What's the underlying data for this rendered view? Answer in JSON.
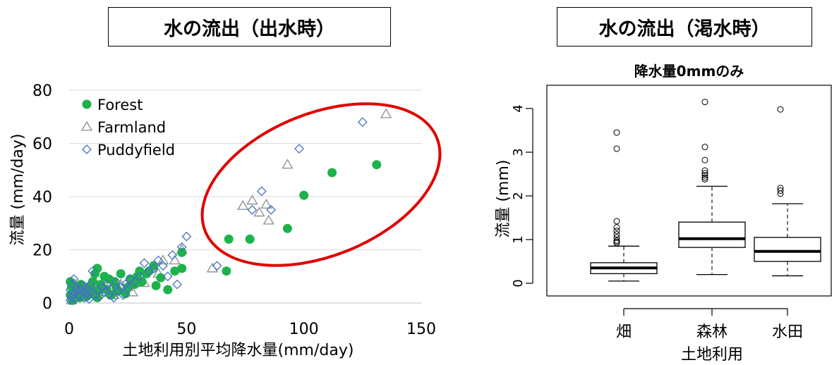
{
  "panels": {
    "left_title": "水の流出（出水時）",
    "right_title": "水の流出（渇水時）"
  },
  "chart_data": [
    {
      "type": "scatter",
      "title": "",
      "xlabel": "土地利用別平均降水量(mm/day)",
      "ylabel": "流量 (mm/day)",
      "xlim": [
        0,
        150
      ],
      "ylim": [
        0,
        80
      ],
      "xticks": [
        0,
        50,
        100,
        150
      ],
      "yticks": [
        0,
        20,
        40,
        60,
        80
      ],
      "grid": true,
      "legend_position": "top-left",
      "series": [
        {
          "name": "Forest",
          "marker": "filled-circle",
          "color": "#1db34a",
          "points": [
            [
              131,
              52
            ],
            [
              112,
              49
            ],
            [
              100,
              40.5
            ],
            [
              93,
              28
            ],
            [
              77,
              24
            ],
            [
              68,
              24
            ],
            [
              67,
              12
            ],
            [
              48,
              19
            ],
            [
              48,
              13
            ],
            [
              45,
              12
            ],
            [
              42,
              5
            ],
            [
              39,
              9.5
            ],
            [
              36,
              14
            ],
            [
              33,
              11
            ],
            [
              31,
              8
            ],
            [
              30,
              12
            ],
            [
              28,
              7
            ],
            [
              25,
              6
            ],
            [
              22,
              11
            ],
            [
              21,
              4.5
            ],
            [
              19,
              8
            ],
            [
              18,
              3
            ],
            [
              17,
              9
            ],
            [
              15,
              10
            ],
            [
              14,
              6
            ],
            [
              13,
              5
            ],
            [
              12,
              13
            ],
            [
              11,
              11
            ],
            [
              10,
              8
            ],
            [
              9,
              6
            ],
            [
              8,
              4
            ],
            [
              7,
              5
            ],
            [
              6,
              3
            ],
            [
              5,
              7
            ],
            [
              4,
              5
            ],
            [
              3,
              2
            ],
            [
              2,
              4
            ],
            [
              1,
              6
            ],
            [
              1,
              2
            ],
            [
              0.5,
              8
            ],
            [
              0.5,
              3
            ],
            [
              1.5,
              1
            ],
            [
              2.5,
              6
            ],
            [
              3.5,
              3.5
            ],
            [
              4.5,
              2
            ],
            [
              6,
              5.5
            ],
            [
              7.5,
              2.5
            ],
            [
              9,
              3.5
            ],
            [
              10.5,
              4.5
            ],
            [
              12,
              2
            ],
            [
              13.5,
              7
            ],
            [
              16,
              5
            ],
            [
              20,
              6
            ],
            [
              24,
              3.5
            ],
            [
              26,
              9
            ],
            [
              29,
              10
            ],
            [
              34,
              12
            ],
            [
              37,
              6.5
            ]
          ]
        },
        {
          "name": "Farmland",
          "marker": "open-triangle",
          "color": "#8c8c8c",
          "points": [
            [
              135,
              71
            ],
            [
              93,
              52
            ],
            [
              84,
              37
            ],
            [
              85,
              31
            ],
            [
              81,
              34
            ],
            [
              78,
              38.5
            ],
            [
              74,
              36.5
            ],
            [
              61,
              13
            ],
            [
              48,
              20
            ],
            [
              45,
              16
            ],
            [
              40,
              16
            ],
            [
              35,
              13
            ],
            [
              30,
              9
            ],
            [
              28,
              8
            ],
            [
              25,
              6
            ],
            [
              22,
              7
            ],
            [
              20,
              5
            ],
            [
              18,
              6
            ],
            [
              16,
              4
            ],
            [
              15,
              7
            ],
            [
              13,
              5
            ],
            [
              12,
              3
            ],
            [
              10,
              6
            ],
            [
              9,
              4
            ],
            [
              8,
              5
            ],
            [
              7,
              3
            ],
            [
              6,
              4
            ],
            [
              5,
              2
            ],
            [
              4,
              5
            ],
            [
              3,
              3
            ],
            [
              2,
              2
            ],
            [
              1,
              4
            ],
            [
              1,
              1
            ],
            [
              2.5,
              7
            ],
            [
              11,
              8
            ],
            [
              19,
              3
            ],
            [
              27,
              4
            ],
            [
              32,
              7.5
            ],
            [
              38,
              11
            ]
          ]
        },
        {
          "name": "Puddyfield",
          "marker": "open-diamond",
          "color": "#4472c4",
          "points": [
            [
              125,
              68
            ],
            [
              98,
              58
            ],
            [
              86,
              35
            ],
            [
              82,
              42
            ],
            [
              78,
              35
            ],
            [
              63,
              14
            ],
            [
              50,
              25
            ],
            [
              48,
              21
            ],
            [
              44,
              18
            ],
            [
              38,
              16
            ],
            [
              36,
              13
            ],
            [
              34,
              12
            ],
            [
              32,
              15
            ],
            [
              30,
              10
            ],
            [
              28,
              8
            ],
            [
              26,
              9
            ],
            [
              24,
              7
            ],
            [
              22,
              6
            ],
            [
              20,
              8
            ],
            [
              18,
              5
            ],
            [
              16,
              7
            ],
            [
              14,
              6
            ],
            [
              12,
              5
            ],
            [
              10,
              12
            ],
            [
              9,
              7
            ],
            [
              8,
              5
            ],
            [
              7,
              6
            ],
            [
              6,
              4
            ],
            [
              5,
              5
            ],
            [
              4,
              3
            ],
            [
              3,
              6
            ],
            [
              2,
              9
            ],
            [
              2,
              4
            ],
            [
              1,
              3
            ],
            [
              1,
              2
            ],
            [
              0.5,
              1
            ],
            [
              0.5,
              5
            ],
            [
              1.5,
              7
            ],
            [
              2.5,
              1.5
            ],
            [
              3.5,
              4.5
            ],
            [
              4.5,
              2.5
            ],
            [
              5.5,
              6.5
            ],
            [
              6.5,
              2
            ],
            [
              7.5,
              3.5
            ],
            [
              8.5,
              1.5
            ],
            [
              9.5,
              4
            ],
            [
              11,
              3
            ],
            [
              13,
              2.5
            ],
            [
              15,
              4
            ],
            [
              17,
              3
            ],
            [
              19,
              2
            ],
            [
              21,
              4.5
            ],
            [
              23,
              3
            ],
            [
              25,
              5.5
            ],
            [
              40,
              14
            ],
            [
              42,
              10
            ],
            [
              46,
              7
            ]
          ]
        }
      ],
      "annotation": {
        "shape": "ellipse",
        "color": "#e00000",
        "note": ""
      }
    },
    {
      "type": "boxplot",
      "title": "降水量0mmのみ",
      "xlabel": "土地利用",
      "ylabel": "流量 (mm)",
      "ylim": [
        0,
        4
      ],
      "yticks": [
        0,
        1,
        2,
        3,
        4
      ],
      "categories": [
        "畑",
        "森林",
        "水田"
      ],
      "boxes": [
        {
          "name": "畑",
          "whisker_low": 0.05,
          "q1": 0.22,
          "median": 0.35,
          "q3": 0.47,
          "whisker_high": 0.85,
          "outliers": [
            3.45,
            3.08,
            1.42,
            1.28,
            1.2,
            1.12,
            1.05,
            0.98,
            0.95,
            0.92
          ]
        },
        {
          "name": "森林",
          "whisker_low": 0.2,
          "q1": 0.82,
          "median": 1.02,
          "q3": 1.4,
          "whisker_high": 2.22,
          "outliers": [
            4.15,
            3.12,
            2.82,
            2.58,
            2.52,
            2.47,
            2.42,
            2.38
          ]
        },
        {
          "name": "水田",
          "whisker_low": 0.17,
          "q1": 0.5,
          "median": 0.73,
          "q3": 1.05,
          "whisker_high": 1.82,
          "outliers": [
            3.98,
            2.18,
            2.12,
            2.05
          ]
        }
      ]
    }
  ]
}
